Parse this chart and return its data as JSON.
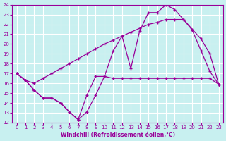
{
  "xlabel": "Windchill (Refroidissement éolien,°C)",
  "xlim": [
    -0.5,
    23.5
  ],
  "ylim": [
    12,
    24
  ],
  "xticks": [
    0,
    1,
    2,
    3,
    4,
    5,
    6,
    7,
    8,
    9,
    10,
    11,
    12,
    13,
    14,
    15,
    16,
    17,
    18,
    19,
    20,
    21,
    22,
    23
  ],
  "yticks": [
    12,
    13,
    14,
    15,
    16,
    17,
    18,
    19,
    20,
    21,
    22,
    23,
    24
  ],
  "bg_color": "#c8f0f0",
  "line_color": "#990099",
  "grid_color": "#ffffff",
  "line1_x": [
    0,
    1,
    2,
    3,
    4,
    5,
    6,
    7,
    8,
    9,
    10,
    11,
    12,
    13,
    14,
    15,
    16,
    17,
    18,
    19,
    20,
    21,
    22,
    23
  ],
  "line1_y": [
    17.0,
    16.3,
    15.3,
    14.5,
    14.5,
    14.0,
    13.1,
    12.3,
    14.8,
    16.7,
    16.7,
    16.5,
    16.5,
    16.5,
    16.5,
    16.5,
    16.5,
    16.5,
    16.5,
    16.5,
    16.5,
    16.5,
    16.5,
    15.9
  ],
  "line2_x": [
    0,
    1,
    2,
    3,
    4,
    5,
    6,
    7,
    8,
    9,
    10,
    11,
    12,
    13,
    14,
    15,
    16,
    17,
    18,
    19,
    20,
    21,
    22,
    23
  ],
  "line2_y": [
    17.0,
    16.3,
    16.0,
    16.5,
    17.0,
    17.5,
    18.0,
    18.5,
    19.0,
    19.5,
    20.0,
    20.4,
    20.8,
    21.2,
    21.6,
    22.0,
    22.2,
    22.5,
    22.5,
    22.5,
    21.5,
    20.5,
    19.0,
    15.9
  ],
  "line3_x": [
    0,
    1,
    2,
    3,
    4,
    5,
    6,
    7,
    8,
    9,
    10,
    11,
    12,
    13,
    14,
    15,
    16,
    17,
    18,
    19,
    20,
    21,
    22,
    23
  ],
  "line3_y": [
    17.0,
    16.3,
    15.3,
    14.5,
    14.5,
    14.0,
    13.1,
    12.3,
    13.1,
    14.8,
    16.7,
    19.3,
    20.8,
    17.5,
    21.3,
    23.2,
    23.2,
    24.0,
    23.5,
    22.5,
    21.4,
    19.3,
    17.2,
    15.9
  ]
}
